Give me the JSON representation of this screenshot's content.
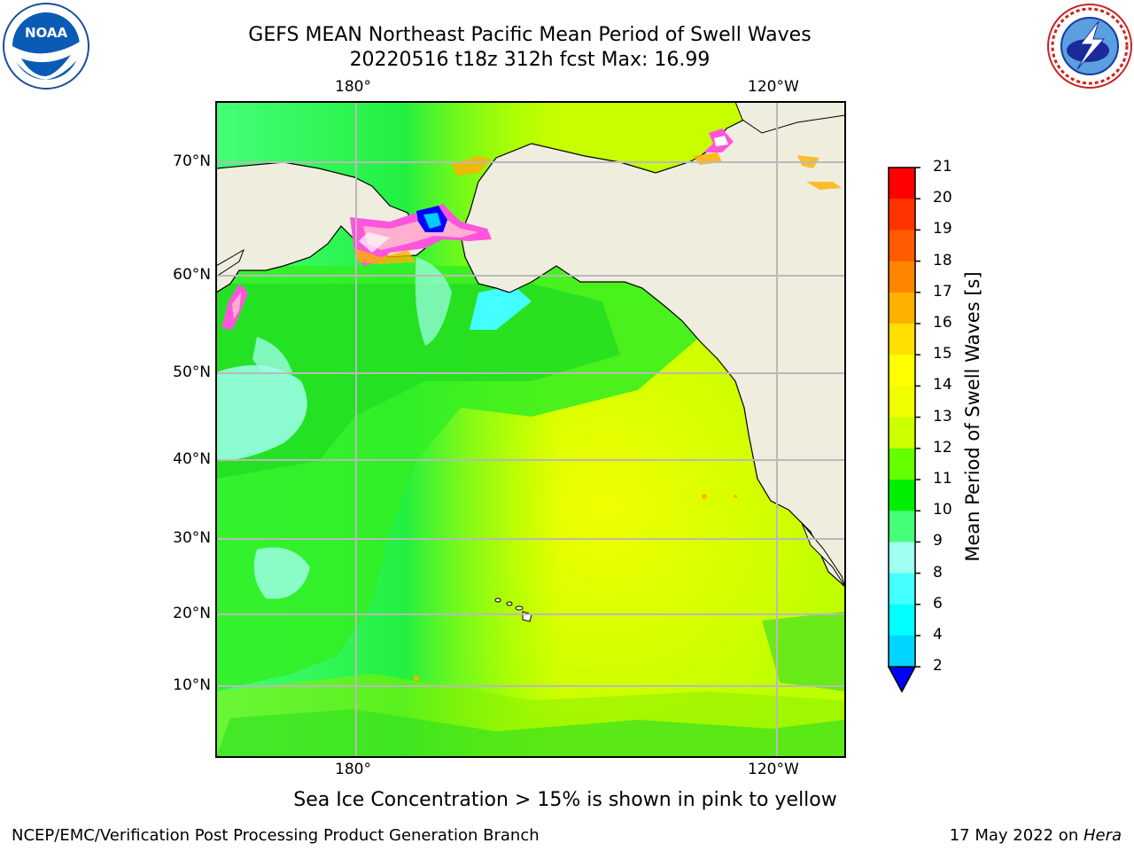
{
  "title": {
    "line1": "GEFS MEAN Northeast Pacific Mean Period of Swell Waves",
    "line2": "20220516 t18z 312h fcst   Max: 16.99"
  },
  "logos": {
    "left_icon": "noaa-logo",
    "right_icon": "national-weather-service-logo"
  },
  "map": {
    "lon_labels": [
      "180°",
      "120°W"
    ],
    "lat_labels": [
      "70°N",
      "60°N",
      "50°N",
      "40°N",
      "30°N",
      "20°N",
      "10°N"
    ],
    "land_color": "#efedde",
    "gridline_color": "#b9b9b9"
  },
  "colorbar": {
    "label": "Mean Period of Swell Waves [s]",
    "ticks": [
      "21",
      "20",
      "19",
      "18",
      "17",
      "16",
      "15",
      "14",
      "13",
      "12",
      "11",
      "10",
      "9",
      "8",
      "6",
      "4",
      "2"
    ],
    "colors": [
      "#ff0000",
      "#ff3300",
      "#ff5a00",
      "#ff8400",
      "#ffb000",
      "#ffdf00",
      "#ffff00",
      "#f0ff00",
      "#ccff00",
      "#66ff00",
      "#00ee00",
      "#44ff77",
      "#a0ffee",
      "#44ffff",
      "#00ffff",
      "#00d5ff",
      "#0077ff"
    ],
    "under_color": "#0000ff"
  },
  "note": "Sea Ice Concentration > 15% is shown in pink to yellow",
  "footer": {
    "left": "NCEP/EMC/Verification Post Processing Product Generation Branch",
    "right_prefix": "17 May 2022 on ",
    "right_machine": "Hera"
  }
}
